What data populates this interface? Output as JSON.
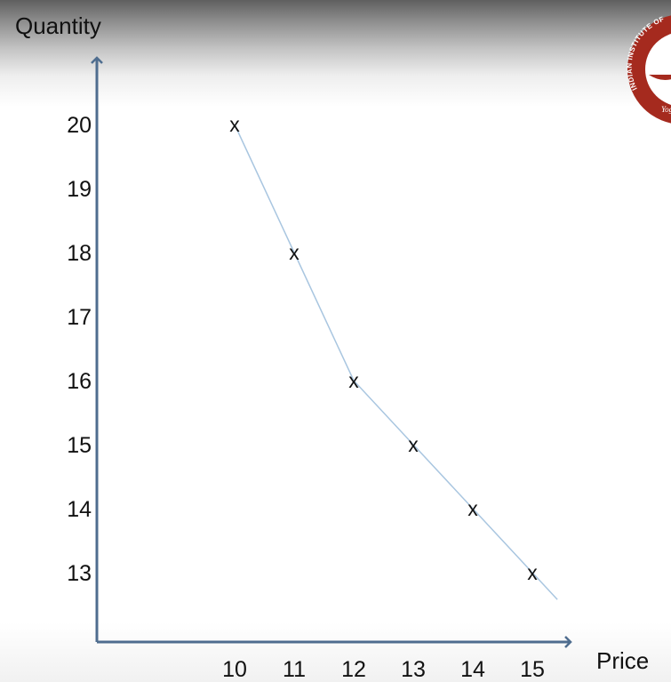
{
  "chart_data": {
    "type": "scatter",
    "xlabel": "Price",
    "ylabel": "Quantity",
    "x": [
      10,
      11,
      12,
      13,
      14,
      15
    ],
    "y": [
      20,
      18,
      16,
      15,
      14,
      13
    ],
    "x_ticks": [
      "10",
      "11",
      "12",
      "13",
      "14",
      "15"
    ],
    "y_ticks": [
      "20",
      "19",
      "18",
      "17",
      "16",
      "15",
      "14",
      "13"
    ],
    "y_tick_values": [
      20,
      19,
      18,
      17,
      16,
      15,
      14,
      13
    ],
    "marker": "x",
    "trend_line": true,
    "grid": false,
    "line_color": "#a9c6e0",
    "axis_color": "#4f6d8f"
  },
  "logo": {
    "text": "INDIAN INSTITUTE OF",
    "motto": "Yoga",
    "bg_color": "#a52a1e"
  }
}
